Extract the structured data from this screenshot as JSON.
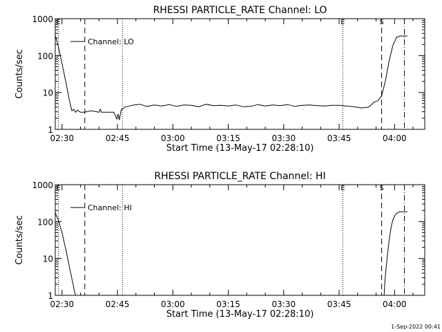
{
  "footer": {
    "timestamp": "1-Sep-2022 00:41"
  },
  "chart_data": [
    {
      "type": "line",
      "title": "RHESSI PARTICLE_RATE Channel: LO",
      "xlabel": "Start Time (13-May-17 02:28:10)",
      "ylabel": "Counts/sec",
      "yscale": "log",
      "ylim": [
        1,
        1000
      ],
      "xlim": [
        "02:28:10",
        "04:08:10"
      ],
      "x_ticks": [
        "02:30",
        "02:45",
        "03:00",
        "03:15",
        "03:30",
        "03:45",
        "04:00"
      ],
      "y_ticks": [
        "1",
        "10",
        "100",
        "1000"
      ],
      "legend": {
        "placement": "top-left",
        "entry": "Channel: LO"
      },
      "markers": [
        {
          "time": "02:29:00",
          "label": "E",
          "style": "dotted"
        },
        {
          "time": "02:36:10",
          "label": "",
          "style": "dashed"
        },
        {
          "time": "02:46:20",
          "label": "",
          "style": "dotted"
        },
        {
          "time": "03:46:00",
          "label": "E",
          "style": "dotted"
        },
        {
          "time": "03:56:30",
          "label": "S",
          "style": "dashed"
        },
        {
          "time": "04:02:40",
          "label": "",
          "style": "dashdot"
        }
      ],
      "series": [
        {
          "x": [
            "02:28:10",
            "02:29:00",
            "02:30:00",
            "02:31:00",
            "02:32:00",
            "02:32:40",
            "02:33:10",
            "02:33:40",
            "02:34:10",
            "02:35:00",
            "02:36:00",
            "02:38:00",
            "02:40:00",
            "02:40:20",
            "02:40:40",
            "02:42:00",
            "02:44:00",
            "02:44:30",
            "02:44:50",
            "02:45:10",
            "02:45:30",
            "02:46:00",
            "02:47:00",
            "02:49:00",
            "02:51:00",
            "02:53:00",
            "02:55:00",
            "02:57:00",
            "02:59:00",
            "03:01:00",
            "03:03:00",
            "03:05:00",
            "03:07:00",
            "03:09:00",
            "03:11:00",
            "03:13:00",
            "03:15:00",
            "03:17:00",
            "03:19:00",
            "03:21:00",
            "03:23:00",
            "03:25:00",
            "03:27:00",
            "03:29:00",
            "03:31:00",
            "03:33:00",
            "03:35:00",
            "03:37:00",
            "03:39:00",
            "03:41:00",
            "03:43:00",
            "03:45:00",
            "03:47:00",
            "03:49:00",
            "03:51:00",
            "03:53:00",
            "03:54:30",
            "03:55:30",
            "03:56:30",
            "03:57:30",
            "03:58:30",
            "03:59:30",
            "04:00:30",
            "04:01:30",
            "04:02:30",
            "04:03:30"
          ],
          "y": [
            350,
            180,
            60,
            20,
            6,
            3.2,
            3.5,
            2.9,
            3.3,
            2.9,
            2.9,
            3.2,
            2.9,
            3.5,
            2.9,
            2.9,
            2.9,
            2.3,
            1.9,
            2.6,
            1.8,
            3.3,
            4.0,
            4.5,
            4.8,
            4.2,
            4.6,
            4.3,
            4.7,
            4.2,
            4.6,
            4.5,
            4.1,
            4.8,
            4.4,
            4.5,
            4.3,
            4.6,
            4.1,
            4.2,
            4.7,
            4.3,
            4.6,
            4.4,
            4.7,
            4.2,
            4.5,
            4.6,
            4.4,
            4.3,
            4.5,
            4.5,
            4.3,
            4.1,
            3.8,
            4.0,
            5.5,
            6.0,
            8,
            20,
            70,
            180,
            310,
            340,
            340,
            340
          ]
        }
      ]
    },
    {
      "type": "line",
      "title": "RHESSI PARTICLE_RATE Channel: HI",
      "xlabel": "Start Time (13-May-17 02:28:10)",
      "ylabel": "Counts/sec",
      "yscale": "log",
      "ylim": [
        1,
        1000
      ],
      "xlim": [
        "02:28:10",
        "04:08:10"
      ],
      "x_ticks": [
        "02:30",
        "02:45",
        "03:00",
        "03:15",
        "03:30",
        "03:45",
        "04:00"
      ],
      "y_ticks": [
        "1",
        "10",
        "100",
        "1000"
      ],
      "legend": {
        "placement": "top-left",
        "entry": "Channel: HI"
      },
      "markers": [
        {
          "time": "02:29:00",
          "label": "E",
          "style": "dotted"
        },
        {
          "time": "02:36:10",
          "label": "",
          "style": "dashed"
        },
        {
          "time": "02:46:20",
          "label": "",
          "style": "dotted"
        },
        {
          "time": "03:46:00",
          "label": "E",
          "style": "dotted"
        },
        {
          "time": "03:56:30",
          "label": "S",
          "style": "dashed"
        },
        {
          "time": "04:02:40",
          "label": "",
          "style": "dashdot"
        }
      ],
      "series": [
        {
          "x": [
            "02:28:10",
            "02:29:00",
            "02:30:00",
            "02:31:00",
            "02:32:00",
            "02:32:40",
            "02:33:00",
            "02:33:20",
            "02:33:40",
            "02:33:45",
            "03:57:10",
            "03:57:20",
            "03:57:40",
            "03:58:10",
            "03:58:40",
            "03:59:10",
            "03:59:40",
            "04:00:10",
            "04:00:40",
            "04:01:10",
            "04:01:40",
            "04:02:10",
            "04:02:40",
            "04:03:10",
            "04:03:30"
          ],
          "y": [
            170,
            110,
            50,
            18,
            6,
            2.8,
            2.0,
            1.3,
            1.0,
            null,
            1.0,
            2,
            5,
            15,
            40,
            80,
            120,
            150,
            170,
            180,
            185,
            185,
            185,
            185,
            185
          ]
        }
      ]
    }
  ]
}
